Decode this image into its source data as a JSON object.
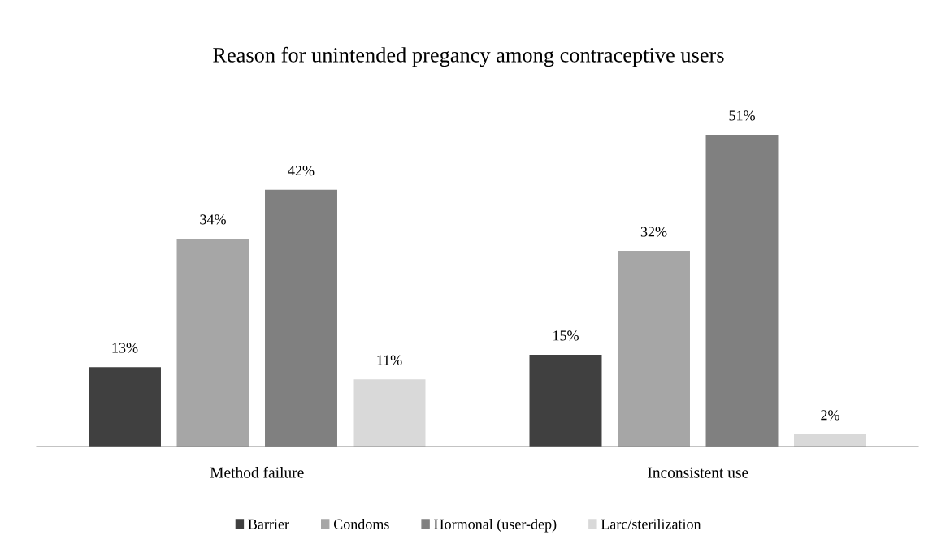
{
  "chart_data": {
    "type": "bar",
    "title": "Reason for unintended pregancy among contraceptive users",
    "categories": [
      "Method failure",
      "Inconsistent use"
    ],
    "series": [
      {
        "name": "Barrier",
        "color": "#404040",
        "values": [
          13,
          15
        ],
        "value_labels": [
          "13%",
          "15%"
        ]
      },
      {
        "name": "Condoms",
        "color": "#a6a6a6",
        "values": [
          34,
          32
        ],
        "value_labels": [
          "34%",
          "32%"
        ]
      },
      {
        "name": "Hormonal (user-dep)",
        "color": "#808080",
        "values": [
          42,
          51
        ],
        "value_labels": [
          "42%",
          "51%"
        ]
      },
      {
        "name": "Larc/sterilization",
        "color": "#d9d9d9",
        "values": [
          11,
          2
        ],
        "value_labels": [
          "11%",
          "2%"
        ]
      }
    ],
    "legend": "bottom",
    "grid": false
  }
}
